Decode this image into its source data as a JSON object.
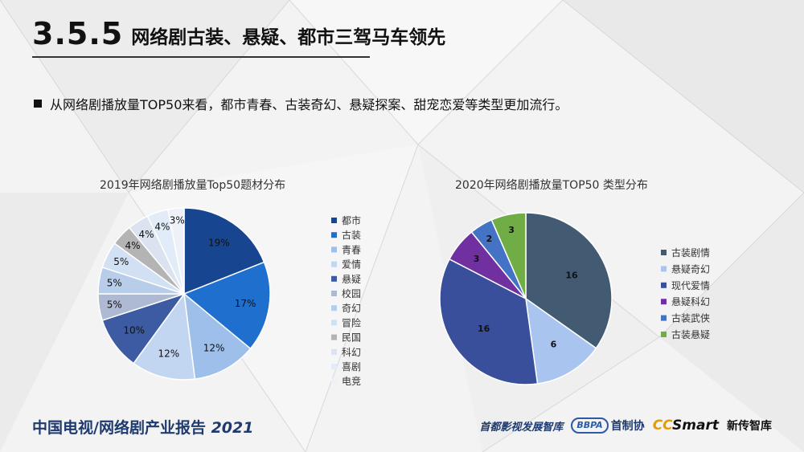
{
  "header": {
    "section_no": "3.5.5",
    "title": "网络剧古装、悬疑、都市三驾马车领先"
  },
  "bullet": {
    "text": "从网络剧播放量TOP50来看，都市青春、古装奇幻、悬疑探案、甜宠恋爱等类型更加流行。"
  },
  "footer": {
    "left_text": "中国电视/网络剧产业报告",
    "left_year": "2021",
    "org1": "首都影视发展智库",
    "org2_badge": "BBPA",
    "org2": "首制协",
    "org3_cc": "CC",
    "org3_rest": "Smart",
    "org3_name": "新传智库"
  },
  "chart_data": [
    {
      "type": "pie",
      "title": "2019年网络剧播放量Top50题材分布",
      "categories": [
        "都市",
        "古装",
        "青春",
        "爱情",
        "悬疑",
        "校园",
        "奇幻",
        "冒险",
        "民国",
        "科幻",
        "喜剧",
        "电竞"
      ],
      "values": [
        19,
        17,
        12,
        12,
        10,
        5,
        5,
        5,
        4,
        4,
        4,
        3
      ],
      "labels": [
        "19%",
        "17%",
        "12%",
        "12%",
        "10%",
        "5%",
        "5%",
        "5%",
        "4%",
        "4%",
        "4%",
        "3%"
      ],
      "colors": [
        "#17458f",
        "#1f6fcf",
        "#9dbfe9",
        "#c2d5f1",
        "#3c5ba3",
        "#aeb9d3",
        "#b7cdea",
        "#d2e0f3",
        "#b4b4b4",
        "#dbe3f1",
        "#e2ecf8",
        "#eef2f8"
      ],
      "legend_position": "right"
    },
    {
      "type": "pie",
      "title": "2020年网络剧播放量TOP50 类型分布",
      "categories": [
        "古装剧情",
        "悬疑奇幻",
        "现代爱情",
        "悬疑科幻",
        "古装武侠",
        "古装悬疑"
      ],
      "values": [
        16,
        6,
        16,
        3,
        2,
        3
      ],
      "colors": [
        "#435a73",
        "#a9c4ee",
        "#3a4f9c",
        "#7030a0",
        "#4472c4",
        "#70ad47"
      ],
      "legend_position": "right"
    }
  ]
}
